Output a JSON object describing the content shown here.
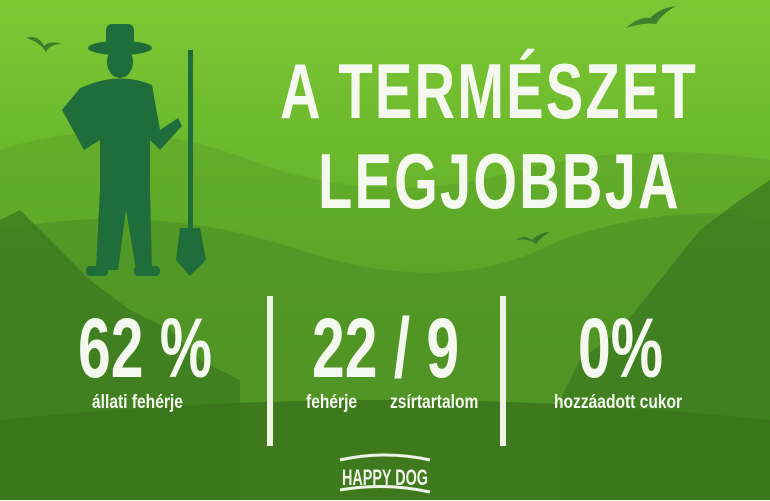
{
  "colors": {
    "sky_top": "#78c432",
    "sky_mid": "#5ea828",
    "ground": "#3d7a1f",
    "farmer": "#1f6d3b",
    "text": "#f4f8ee"
  },
  "headline": {
    "line1": "A TERMÉSZET",
    "line2": "LEGJOBBJA"
  },
  "stats": [
    {
      "value": "62 %",
      "label": "állati fehérje"
    },
    {
      "value": "22 / 9",
      "label_left": "fehérje",
      "label_right": "zsírtartalom"
    },
    {
      "value": "0%",
      "label": "hozzáadott cukor"
    }
  ],
  "logo": {
    "text": "HAPPY DOG"
  },
  "icons": [
    "farmer-illustration",
    "bird-icon",
    "tree-silhouettes"
  ]
}
